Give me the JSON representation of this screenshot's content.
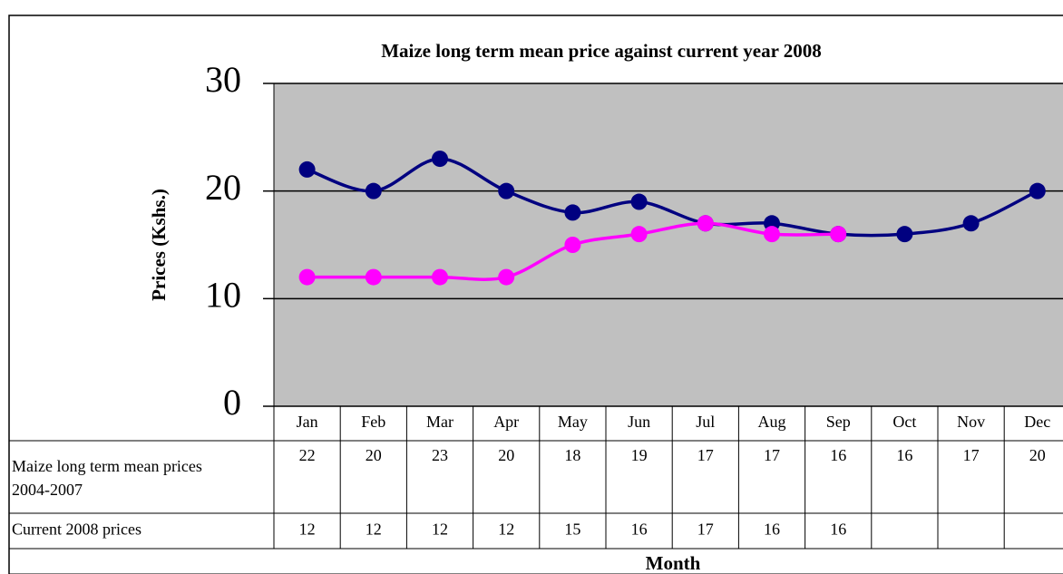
{
  "chart_data": {
    "type": "line",
    "title": "Maize long term mean price against current year 2008",
    "y_label": "Prices (Kshs.)",
    "x_label": "Month",
    "categories": [
      "Jan",
      "Feb",
      "Mar",
      "Apr",
      "May",
      "Jun",
      "Jul",
      "Aug",
      "Sep",
      "Oct",
      "Nov",
      "Dec"
    ],
    "series": [
      {
        "name": "Maize long term mean prices 2004-2007",
        "color": "#000080",
        "values": [
          22,
          20,
          23,
          20,
          18,
          19,
          17,
          17,
          16,
          16,
          17,
          20
        ]
      },
      {
        "name": "Current 2008 prices",
        "color": "#ff00ff",
        "values": [
          12,
          12,
          12,
          12,
          15,
          16,
          17,
          16,
          16,
          null,
          null,
          null
        ]
      }
    ],
    "ylim": [
      0,
      30
    ],
    "yticks": [
      0,
      10,
      20,
      30
    ],
    "grid": true,
    "smooth": true
  }
}
